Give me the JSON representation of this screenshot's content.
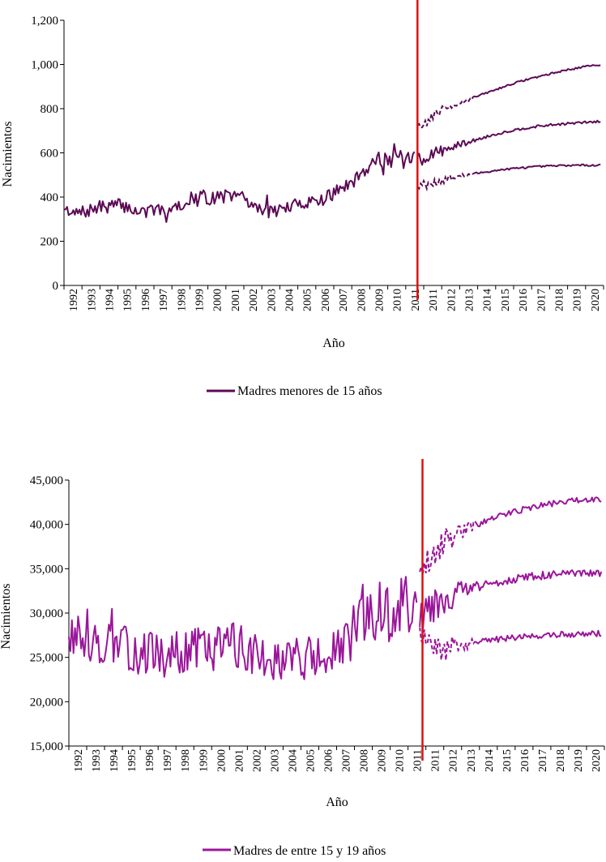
{
  "chart_data": [
    {
      "type": "line",
      "title": "",
      "xlabel": "Año",
      "ylabel": "Nacimientos",
      "ylim": [
        0,
        1200
      ],
      "yticks": [
        0,
        200,
        400,
        600,
        800,
        1000,
        1200
      ],
      "ytick_labels": [
        "0",
        "200",
        "400",
        "600",
        "800",
        "1,000",
        "1,200"
      ],
      "xticks": [
        "1992",
        "1993",
        "1994",
        "1995",
        "1996",
        "1997",
        "1998",
        "1999",
        "2000",
        "2001",
        "2002",
        "2003",
        "2004",
        "2005",
        "2006",
        "2007",
        "2008",
        "2009",
        "2010",
        "2011",
        "2011",
        "2012",
        "2013",
        "2014",
        "2015",
        "2016",
        "2017",
        "2018",
        "2019",
        "2020"
      ],
      "legend": "Madres menores de 15 años",
      "legend_position": "bottom",
      "color": "#5c0a55",
      "divider_color": "#dd1111",
      "divider_year": 2011.0,
      "x_start": 1992.0,
      "x_end": 2021.0,
      "observed_annual": {
        "years": [
          1992,
          1993,
          1994,
          1995,
          1996,
          1997,
          1998,
          1999,
          2000,
          2001,
          2002,
          2003,
          2004,
          2005,
          2006,
          2007,
          2008,
          2009,
          2010,
          2010.9
        ],
        "values": [
          318,
          330,
          355,
          365,
          335,
          332,
          360,
          385,
          395,
          410,
          365,
          335,
          350,
          380,
          390,
          445,
          520,
          580,
          565,
          565
        ]
      },
      "forecast_central": {
        "years": [
          2011,
          2012,
          2013,
          2014,
          2015,
          2016,
          2017,
          2018,
          2019,
          2020,
          2020.9
        ],
        "values": [
          570,
          600,
          630,
          655,
          680,
          700,
          715,
          725,
          732,
          738,
          742
        ]
      },
      "forecast_upper": {
        "years": [
          2011,
          2012,
          2013,
          2014,
          2015,
          2016,
          2017,
          2018,
          2019,
          2020,
          2020.9
        ],
        "values": [
          700,
          780,
          820,
          850,
          880,
          910,
          935,
          955,
          975,
          990,
          1000
        ]
      },
      "forecast_lower": {
        "years": [
          2011,
          2012,
          2013,
          2014,
          2015,
          2016,
          2017,
          2018,
          2019,
          2020,
          2020.9
        ],
        "values": [
          450,
          470,
          490,
          505,
          518,
          528,
          535,
          540,
          543,
          544,
          545
        ]
      },
      "noise_amplitude": 60
    },
    {
      "type": "line",
      "title": "",
      "xlabel": "Año",
      "ylabel": "Nacimientos",
      "ylim": [
        15000,
        45000
      ],
      "yticks": [
        15000,
        20000,
        25000,
        30000,
        35000,
        40000,
        45000
      ],
      "ytick_labels": [
        "15,000",
        "20,000",
        "25,000",
        "30,000",
        "35,000",
        "40,000",
        "45,000"
      ],
      "xticks": [
        "1992",
        "1993",
        "1994",
        "1995",
        "1996",
        "1997",
        "1998",
        "1999",
        "2000",
        "2001",
        "2002",
        "2003",
        "2004",
        "2005",
        "2006",
        "2007",
        "2008",
        "2009",
        "2010",
        "2011",
        "2011",
        "2012",
        "2013",
        "2014",
        "2015",
        "2016",
        "2017",
        "2018",
        "2019",
        "2020"
      ],
      "legend": "Madres de entre 15 y 19 años",
      "legend_position": "bottom",
      "color": "#9b169b",
      "divider_color": "#dd1111",
      "divider_year": 2011.15,
      "x_start": 1992.0,
      "x_end": 2021.0,
      "observed_annual": {
        "years": [
          1992,
          1993,
          1994,
          1995,
          1996,
          1997,
          1998,
          1999,
          2000,
          2001,
          2002,
          2003,
          2004,
          2005,
          2006,
          2007,
          2008,
          2009,
          2010,
          2010.9
        ],
        "values": [
          27500,
          27000,
          26500,
          26000,
          25500,
          25200,
          25600,
          26000,
          26500,
          26500,
          25500,
          25000,
          25000,
          25000,
          24800,
          26500,
          28500,
          29500,
          30500,
          30000
        ]
      },
      "forecast_central": {
        "years": [
          2011,
          2012,
          2013,
          2014,
          2015,
          2016,
          2017,
          2018,
          2019,
          2020,
          2020.9
        ],
        "values": [
          30500,
          31500,
          32300,
          32900,
          33400,
          33800,
          34100,
          34300,
          34400,
          34450,
          34500
        ]
      },
      "forecast_upper": {
        "years": [
          2011,
          2012,
          2013,
          2014,
          2015,
          2016,
          2017,
          2018,
          2019,
          2020,
          2020.9
        ],
        "values": [
          35000,
          37500,
          38900,
          39900,
          40700,
          41400,
          41900,
          42300,
          42600,
          42800,
          42900
        ]
      },
      "forecast_lower": {
        "years": [
          2011,
          2012,
          2013,
          2014,
          2015,
          2016,
          2017,
          2018,
          2019,
          2020,
          2020.9
        ],
        "values": [
          26500,
          25800,
          26200,
          26600,
          27000,
          27200,
          27400,
          27500,
          27600,
          27650,
          27700
        ]
      },
      "noise_amplitude": 5000
    }
  ]
}
